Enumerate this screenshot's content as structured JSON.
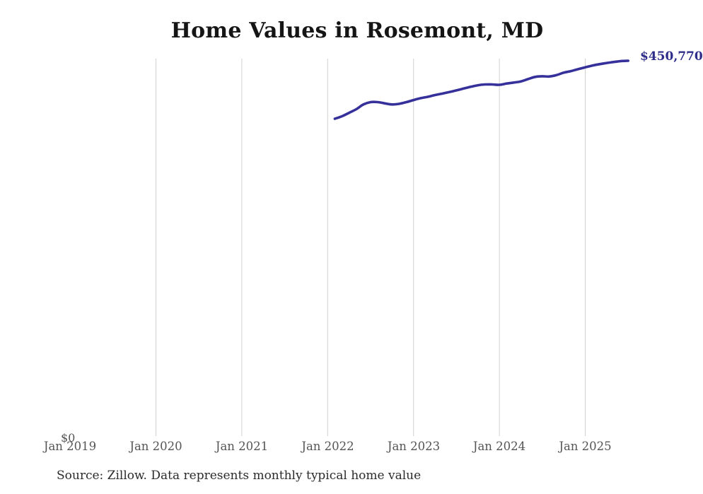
{
  "source_note": "Source: Zillow. Data represents monthly typical home value",
  "colors": {
    "line": "#36309a",
    "end_label": "#2e2d89",
    "gridline": "#d0d0d0",
    "axis_label": "#555555",
    "title": "#151515",
    "source": "#2b2b2b",
    "background": "#ffffff"
  },
  "chart_data": {
    "type": "line",
    "title": "Home Values in Rosemont, MD",
    "series_name": "Monthly typical home value (USD)",
    "x": [
      "Feb 2022",
      "Mar 2022",
      "Apr 2022",
      "May 2022",
      "Jun 2022",
      "Jul 2022",
      "Aug 2022",
      "Sep 2022",
      "Oct 2022",
      "Nov 2022",
      "Dec 2022",
      "Jan 2023",
      "Feb 2023",
      "Mar 2023",
      "Apr 2023",
      "May 2023",
      "Jun 2023",
      "Jul 2023",
      "Aug 2023",
      "Sep 2023",
      "Oct 2023",
      "Nov 2023",
      "Dec 2023",
      "Jan 2024",
      "Feb 2024",
      "Mar 2024",
      "Apr 2024",
      "May 2024",
      "Jun 2024",
      "Jul 2024",
      "Aug 2024",
      "Sep 2024",
      "Oct 2024",
      "Nov 2024",
      "Dec 2024",
      "Jan 2025",
      "Feb 2025",
      "Mar 2025",
      "Apr 2025",
      "May 2025",
      "Jun 2025",
      "Jul 2025"
    ],
    "values": [
      381200,
      384100,
      388300,
      392600,
      398300,
      401100,
      401100,
      399600,
      398300,
      399100,
      401100,
      403600,
      405900,
      407500,
      409600,
      411300,
      413200,
      415200,
      417400,
      419500,
      421400,
      422300,
      422300,
      421900,
      423400,
      424600,
      426000,
      428800,
      431400,
      432200,
      431900,
      433600,
      436500,
      438400,
      440700,
      443000,
      445000,
      446700,
      448100,
      449300,
      450400,
      450770
    ],
    "x_tick_labels": [
      "Jan 2019",
      "Jan 2020",
      "Jan 2021",
      "Jan 2022",
      "Jan 2023",
      "Jan 2024",
      "Jan 2025"
    ],
    "gridline_ticks": [
      "Jan 2020",
      "Jan 2021",
      "Jan 2022",
      "Jan 2023",
      "Jan 2024",
      "Jan 2025"
    ],
    "y_axis_labels": [
      "$0"
    ],
    "ylim": [
      0,
      453000
    ],
    "xlabel": "",
    "ylabel": "",
    "grid": "vertical-only",
    "legend": "none",
    "last_value_label": "$450,770"
  }
}
